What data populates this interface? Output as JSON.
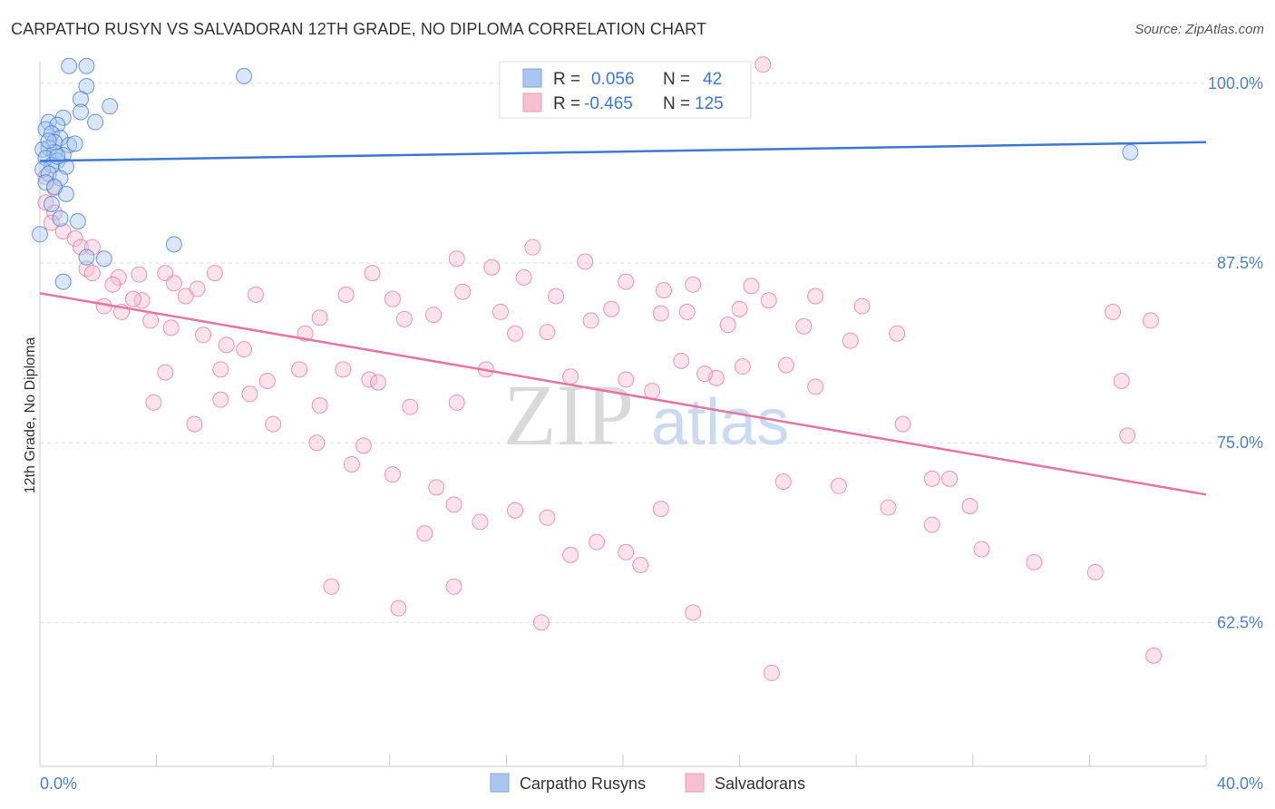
{
  "title": "CARPATHO RUSYN VS SALVADORAN 12TH GRADE, NO DIPLOMA CORRELATION CHART",
  "source": "Source: ZipAtlas.com",
  "watermark": {
    "zip": "ZIP",
    "atlas": "atlas"
  },
  "colors": {
    "blue": "#3d78d8",
    "blue_fill": "#a9c7ee",
    "pink": "#e8749f",
    "pink_fill": "#f6bfd2",
    "grid": "#dddddd",
    "tick_text": "#4a7fd0"
  },
  "legend": {
    "rows": [
      {
        "r_label": "R =",
        "r_value": "0.056",
        "n_label": "N =",
        "n_value": "42",
        "series": "blue"
      },
      {
        "r_label": "R =",
        "r_value": "-0.465",
        "n_label": "N =",
        "n_value": "125",
        "series": "pink"
      }
    ]
  },
  "bottom_legend": [
    "Carpatho Rusyns",
    "Salvadorans"
  ],
  "chart_data": {
    "type": "scatter",
    "title": "CARPATHO RUSYN VS SALVADORAN 12TH GRADE, NO DIPLOMA CORRELATION CHART",
    "xlabel": "",
    "ylabel": "12th Grade, No Diploma",
    "xlim": [
      0,
      40
    ],
    "ylim": [
      52.5,
      101.5
    ],
    "x_tick_labels": [
      {
        "value": 0,
        "label": "0.0%"
      },
      {
        "value": 40,
        "label": "40.0%"
      }
    ],
    "y_tick_labels": [
      {
        "value": 100,
        "label": "100.0%"
      },
      {
        "value": 87.5,
        "label": "87.5%"
      },
      {
        "value": 75,
        "label": "75.0%"
      },
      {
        "value": 62.5,
        "label": "62.5%"
      }
    ],
    "series": [
      {
        "name": "Carpatho Rusyns",
        "color": "blue",
        "R": 0.056,
        "N": 42,
        "trend": {
          "x": [
            0,
            40
          ],
          "y": [
            94.6,
            95.9
          ]
        },
        "points": [
          [
            1.0,
            101.2
          ],
          [
            1.6,
            101.2
          ],
          [
            7.0,
            100.5
          ],
          [
            1.6,
            99.8
          ],
          [
            1.4,
            98.9
          ],
          [
            2.4,
            98.4
          ],
          [
            1.4,
            98.0
          ],
          [
            0.3,
            97.3
          ],
          [
            0.8,
            97.6
          ],
          [
            0.6,
            97.1
          ],
          [
            1.9,
            97.3
          ],
          [
            0.2,
            96.8
          ],
          [
            0.4,
            96.5
          ],
          [
            0.7,
            96.2
          ],
          [
            0.5,
            95.9
          ],
          [
            1.0,
            95.7
          ],
          [
            0.3,
            95.5
          ],
          [
            0.1,
            95.4
          ],
          [
            0.5,
            95.2
          ],
          [
            0.8,
            95.0
          ],
          [
            0.2,
            94.8
          ],
          [
            0.6,
            94.6
          ],
          [
            0.4,
            94.3
          ],
          [
            0.9,
            94.2
          ],
          [
            0.1,
            94.0
          ],
          [
            0.3,
            93.7
          ],
          [
            0.7,
            93.4
          ],
          [
            0.2,
            93.1
          ],
          [
            0.5,
            92.8
          ],
          [
            0.9,
            92.3
          ],
          [
            0.4,
            91.6
          ],
          [
            1.3,
            90.4
          ],
          [
            0.7,
            90.6
          ],
          [
            0.0,
            89.5
          ],
          [
            4.6,
            88.8
          ],
          [
            2.2,
            87.8
          ],
          [
            1.6,
            87.9
          ],
          [
            0.8,
            86.2
          ],
          [
            37.4,
            95.2
          ],
          [
            0.3,
            96.0
          ],
          [
            1.2,
            95.8
          ],
          [
            0.6,
            94.9
          ]
        ]
      },
      {
        "name": "Salvadorans",
        "color": "pink",
        "R": -0.465,
        "N": 125,
        "trend": {
          "x": [
            0,
            40
          ],
          "y": [
            85.4,
            71.4
          ]
        },
        "points": [
          [
            24.8,
            101.3
          ],
          [
            0.2,
            93.5
          ],
          [
            0.5,
            92.7
          ],
          [
            0.2,
            91.7
          ],
          [
            0.5,
            91.0
          ],
          [
            0.4,
            90.3
          ],
          [
            0.8,
            89.7
          ],
          [
            1.2,
            89.2
          ],
          [
            1.4,
            88.6
          ],
          [
            1.8,
            88.6
          ],
          [
            1.6,
            87.1
          ],
          [
            1.8,
            86.8
          ],
          [
            2.7,
            86.5
          ],
          [
            2.5,
            86.0
          ],
          [
            3.4,
            86.7
          ],
          [
            4.3,
            86.8
          ],
          [
            5.0,
            85.2
          ],
          [
            6.0,
            86.8
          ],
          [
            7.4,
            85.3
          ],
          [
            10.5,
            85.3
          ],
          [
            12.1,
            85.0
          ],
          [
            14.5,
            85.5
          ],
          [
            17.7,
            85.2
          ],
          [
            18.7,
            87.6
          ],
          [
            20.1,
            86.2
          ],
          [
            21.4,
            85.6
          ],
          [
            22.4,
            86.0
          ],
          [
            24.4,
            85.9
          ],
          [
            25.0,
            84.9
          ],
          [
            26.6,
            85.2
          ],
          [
            2.2,
            84.5
          ],
          [
            2.8,
            84.1
          ],
          [
            3.8,
            83.5
          ],
          [
            4.5,
            83.0
          ],
          [
            5.6,
            82.5
          ],
          [
            6.4,
            81.8
          ],
          [
            7.0,
            81.5
          ],
          [
            8.9,
            80.1
          ],
          [
            10.4,
            80.1
          ],
          [
            11.3,
            79.4
          ],
          [
            11.6,
            79.2
          ],
          [
            12.7,
            77.5
          ],
          [
            14.3,
            77.8
          ],
          [
            15.3,
            80.1
          ],
          [
            18.2,
            79.6
          ],
          [
            20.1,
            79.4
          ],
          [
            21.0,
            78.6
          ],
          [
            22.0,
            80.7
          ],
          [
            23.2,
            79.5
          ],
          [
            24.1,
            80.3
          ],
          [
            25.6,
            80.4
          ],
          [
            26.6,
            78.9
          ],
          [
            27.8,
            82.1
          ],
          [
            29.4,
            82.6
          ],
          [
            4.3,
            79.9
          ],
          [
            6.2,
            78.0
          ],
          [
            7.2,
            78.4
          ],
          [
            9.5,
            75.0
          ],
          [
            9.6,
            77.6
          ],
          [
            10.7,
            73.5
          ],
          [
            11.1,
            74.8
          ],
          [
            12.1,
            72.8
          ],
          [
            13.6,
            71.9
          ],
          [
            13.2,
            68.7
          ],
          [
            14.2,
            70.7
          ],
          [
            15.1,
            69.5
          ],
          [
            16.3,
            70.3
          ],
          [
            17.4,
            69.8
          ],
          [
            18.2,
            67.2
          ],
          [
            19.1,
            68.1
          ],
          [
            20.1,
            67.4
          ],
          [
            20.6,
            66.5
          ],
          [
            21.3,
            70.4
          ],
          [
            25.5,
            72.3
          ],
          [
            27.4,
            72.0
          ],
          [
            29.1,
            70.5
          ],
          [
            29.6,
            76.3
          ],
          [
            30.6,
            72.5
          ],
          [
            31.2,
            72.5
          ],
          [
            30.6,
            69.3
          ],
          [
            31.9,
            70.6
          ],
          [
            32.3,
            67.6
          ],
          [
            34.1,
            66.7
          ],
          [
            37.3,
            75.5
          ],
          [
            37.1,
            79.3
          ],
          [
            36.8,
            84.1
          ],
          [
            38.1,
            83.5
          ],
          [
            36.2,
            66.0
          ],
          [
            38.2,
            60.2
          ],
          [
            25.1,
            59.0
          ],
          [
            17.2,
            62.5
          ],
          [
            22.4,
            63.2
          ],
          [
            12.3,
            63.5
          ],
          [
            14.2,
            65.0
          ],
          [
            10.0,
            65.0
          ],
          [
            3.9,
            77.8
          ],
          [
            5.3,
            76.3
          ],
          [
            6.2,
            80.1
          ],
          [
            7.8,
            79.3
          ],
          [
            8.0,
            76.3
          ],
          [
            9.1,
            82.6
          ],
          [
            12.5,
            83.6
          ],
          [
            15.8,
            84.1
          ],
          [
            16.3,
            82.6
          ],
          [
            18.9,
            83.5
          ],
          [
            19.6,
            84.3
          ],
          [
            21.3,
            84.0
          ],
          [
            22.2,
            84.1
          ],
          [
            23.6,
            83.2
          ],
          [
            24.0,
            84.3
          ],
          [
            26.2,
            83.1
          ],
          [
            28.2,
            84.5
          ],
          [
            17.4,
            82.7
          ],
          [
            5.4,
            85.7
          ],
          [
            3.5,
            84.9
          ],
          [
            9.6,
            83.7
          ],
          [
            13.5,
            83.9
          ],
          [
            11.4,
            86.8
          ],
          [
            3.2,
            85.0
          ],
          [
            4.6,
            86.1
          ],
          [
            16.9,
            88.6
          ],
          [
            14.3,
            87.8
          ],
          [
            15.5,
            87.2
          ],
          [
            16.6,
            86.5
          ],
          [
            22.8,
            79.8
          ]
        ]
      }
    ]
  }
}
